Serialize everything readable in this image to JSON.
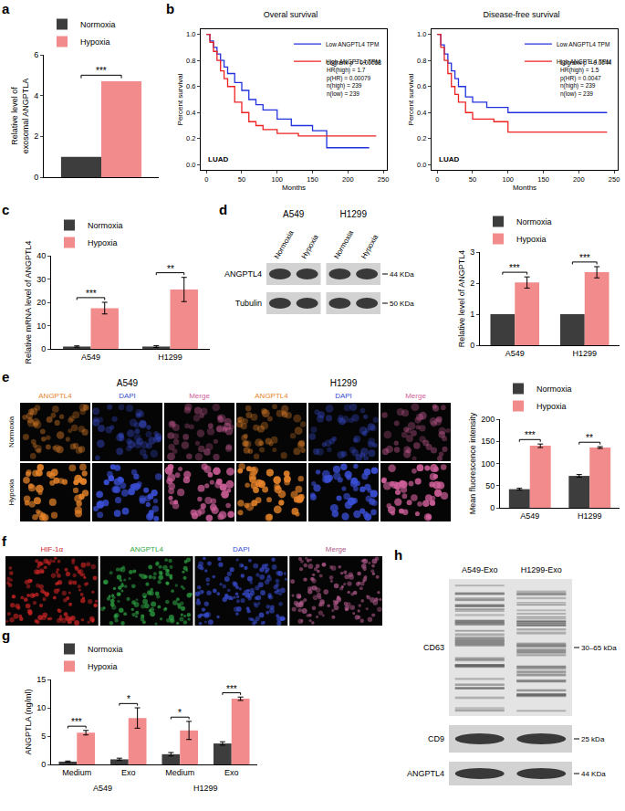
{
  "chart_data": [
    {
      "panel": "a",
      "type": "bar",
      "y_label": [
        "Relative level of",
        "exosomal ANGPTLA"
      ],
      "categories": [
        null
      ],
      "series": [
        {
          "name": "Normoxia",
          "color": "#3d3d3d",
          "values": [
            1
          ]
        },
        {
          "name": "Hypoxia",
          "color": "#f28b8b",
          "values": [
            4.7
          ]
        }
      ],
      "significance": [
        "***"
      ],
      "ylim": [
        0,
        6
      ],
      "yticks": [
        0,
        2,
        4,
        6
      ],
      "legend": "top-left"
    },
    {
      "panel": "b",
      "type": "line",
      "title": "Overal survival",
      "x_label": "Months",
      "y_label": "Percent survival",
      "line_style": "step",
      "series": [
        {
          "name": "Low ANGPTL4 TPM",
          "color": "#2233dd",
          "x": [
            0,
            5,
            10,
            15,
            20,
            25,
            30,
            40,
            50,
            60,
            70,
            80,
            100,
            120,
            150,
            165,
            170,
            230
          ],
          "values": [
            1,
            0.95,
            0.9,
            0.85,
            0.8,
            0.75,
            0.7,
            0.63,
            0.57,
            0.5,
            0.46,
            0.42,
            0.35,
            0.3,
            0.26,
            0.26,
            0.13,
            0.13
          ]
        },
        {
          "name": "High ANGPTL4 TPM",
          "color": "#ee2222",
          "x": [
            0,
            5,
            10,
            15,
            20,
            25,
            30,
            40,
            50,
            60,
            70,
            80,
            100,
            130,
            240
          ],
          "values": [
            1,
            0.94,
            0.87,
            0.8,
            0.72,
            0.66,
            0.6,
            0.48,
            0.4,
            0.33,
            0.3,
            0.27,
            0.24,
            0.22,
            0.22
          ]
        }
      ],
      "annotations": [
        "Logrank p = 0.00068",
        "HR(high) = 1.7",
        "p(HR) = 0.00079",
        "n(high) = 239",
        "n(low) = 239"
      ],
      "corner_label": "LUAD",
      "xlim": [
        -8,
        255
      ],
      "xticks": [
        0,
        50,
        100,
        150,
        200,
        250
      ],
      "ylim": [
        -0.04,
        1.04
      ],
      "yticks": [
        {
          "value": 0,
          "label": "0.0"
        },
        {
          "value": 0.2,
          "label": "0.2"
        },
        {
          "value": 0.4,
          "label": "0.4"
        },
        {
          "value": 0.6,
          "label": "0.6"
        },
        {
          "value": 0.8,
          "label": "0.8"
        },
        {
          "value": 1,
          "label": "1.0"
        }
      ],
      "legend": "top-right"
    },
    {
      "type": "line",
      "title": "Disease-free survival",
      "x_label": "Months",
      "y_label": "Percent survival",
      "line_style": "step",
      "series": [
        {
          "name": "Low ANGPTL4 TPM",
          "color": "#2233dd",
          "x": [
            0,
            5,
            10,
            15,
            20,
            25,
            30,
            40,
            50,
            70,
            100,
            240
          ],
          "values": [
            1,
            0.92,
            0.85,
            0.78,
            0.72,
            0.66,
            0.6,
            0.52,
            0.48,
            0.44,
            0.4,
            0.4
          ]
        },
        {
          "name": "High ANGPTL4 TPM",
          "color": "#ee2222",
          "x": [
            0,
            5,
            10,
            15,
            20,
            25,
            30,
            40,
            50,
            80,
            100,
            240
          ],
          "values": [
            1,
            0.9,
            0.8,
            0.7,
            0.6,
            0.54,
            0.48,
            0.4,
            0.35,
            0.33,
            0.25,
            0.25
          ]
        }
      ],
      "annotations": [
        "Logrank p = 0.0044",
        "HR(high) = 1.5",
        "p(HR) = 0.0047",
        "n(high) = 239",
        "n(low) = 239"
      ],
      "corner_label": "LUAD",
      "xlim": [
        -8,
        255
      ],
      "xticks": [
        0,
        50,
        100,
        150,
        200,
        250
      ],
      "ylim": [
        -0.04,
        1.04
      ],
      "yticks": [
        {
          "value": 0,
          "label": "0.0"
        },
        {
          "value": 0.2,
          "label": "0.2"
        },
        {
          "value": 0.4,
          "label": "0.4"
        },
        {
          "value": 0.6,
          "label": "0.6"
        },
        {
          "value": 0.8,
          "label": "0.8"
        },
        {
          "value": 1,
          "label": "1.0"
        }
      ],
      "legend": "top-right"
    },
    {
      "panel": "c",
      "type": "bar",
      "y_label": "Relative mRNA level of ANGPTL4",
      "categories": [
        "A549",
        "H1299"
      ],
      "series": [
        {
          "name": "Normoxia",
          "color": "#3d3d3d",
          "values": [
            1,
            1
          ],
          "error": [
            0.3,
            0.4
          ]
        },
        {
          "name": "Hypoxia",
          "color": "#f28b8b",
          "values": [
            17.5,
            25.5
          ],
          "error": [
            2.5,
            5.2
          ]
        }
      ],
      "significance": [
        "***",
        "**"
      ],
      "ylim": [
        0,
        40
      ],
      "yticks": [
        0,
        10,
        20,
        30,
        40
      ],
      "legend": "top-left"
    },
    {
      "type": "bar",
      "y_label": "Relative level of ANGPTL4",
      "categories": [
        "A549",
        "H1299"
      ],
      "series": [
        {
          "name": "Normoxia",
          "color": "#3d3d3d",
          "values": [
            1,
            1
          ]
        },
        {
          "name": "Hypoxia",
          "color": "#f28b8b",
          "values": [
            2.02,
            2.35
          ],
          "error": [
            0.18,
            0.18
          ]
        }
      ],
      "significance": [
        "***",
        "***"
      ],
      "ylim": [
        0,
        3
      ],
      "yticks": [
        0,
        1,
        2,
        3
      ],
      "legend": "top-left"
    },
    {
      "type": "bar",
      "y_label": "Mean fluorescence intensity",
      "categories": [
        "A549",
        "H1299"
      ],
      "series": [
        {
          "name": "Normoxia",
          "color": "#3d3d3d",
          "values": [
            42,
            72
          ],
          "error": [
            2,
            3
          ]
        },
        {
          "name": "Hypoxia",
          "color": "#f28b8b",
          "values": [
            140,
            136
          ],
          "error": [
            4,
            2
          ]
        }
      ],
      "significance": [
        "***",
        "**"
      ],
      "ylim": [
        0,
        200
      ],
      "yticks": [
        0,
        50,
        100,
        150,
        200
      ],
      "legend": "top-left"
    },
    {
      "panel": "g",
      "type": "bar",
      "y_label": "ANGPTLA (ng/ml)",
      "categories": [
        "Medium",
        "Exo",
        "Medium",
        "Exo"
      ],
      "group_labels": [
        "A549",
        "H1299"
      ],
      "series": [
        {
          "name": "Normoxia",
          "color": "#3d3d3d",
          "values": [
            0.5,
            0.9,
            1.8,
            3.7
          ],
          "error": [
            0.1,
            0.2,
            0.3,
            0.3
          ]
        },
        {
          "name": "Hypoxia",
          "color": "#f28b8b",
          "values": [
            5.6,
            8.2,
            6.0,
            11.6
          ],
          "error": [
            0.4,
            1.8,
            1.6,
            0.3
          ]
        }
      ],
      "significance": [
        "***",
        "*",
        "*",
        "***"
      ],
      "ylim": [
        0,
        15
      ],
      "yticks": [
        0,
        5,
        10,
        15
      ],
      "legend": "top-left"
    }
  ],
  "images": [
    {
      "panel": "d",
      "type": "blot",
      "column_groups": [
        "A549",
        "H1299"
      ],
      "columns": [
        "Normoxia",
        "Hypoxia",
        "Normoxia",
        "Hypoxia"
      ],
      "rows": [
        {
          "name": "ANGPTL4",
          "size": "44 KDa"
        },
        {
          "name": "Tubulin",
          "size": "50 KDa"
        }
      ]
    },
    {
      "panel": "e",
      "type": "micrograph",
      "column_groups": [
        "A549",
        "H1299"
      ],
      "columns": [
        {
          "label": "ANGPTL4",
          "color": "#e8842a"
        },
        {
          "label": "DAPI",
          "color": "#3a4fd6"
        },
        {
          "label": "Merge",
          "color": "#d0609a"
        },
        {
          "label": "ANGPTL4",
          "color": "#e8842a"
        },
        {
          "label": "DAPI",
          "color": "#3a4fd6"
        },
        {
          "label": "Merge",
          "color": "#d0609a"
        }
      ],
      "rows": [
        "Normoxia",
        "Hypoxia"
      ]
    },
    {
      "panel": "f",
      "type": "micrograph",
      "columns": [
        {
          "label": "HIF-1α",
          "color": "#d02525"
        },
        {
          "label": "ANGPTL4",
          "color": "#2fa845"
        },
        {
          "label": "DAPI",
          "color": "#3a4fd6"
        },
        {
          "label": "Merge",
          "color": "#b05a8a"
        }
      ]
    },
    {
      "panel": "h",
      "type": "blot",
      "columns": [
        "A549-Exo",
        "H1299-Exo"
      ],
      "rows": [
        {
          "name": "CD63",
          "size": "30–65 kDa"
        },
        {
          "name": "CD9",
          "size": "25 kDa"
        },
        {
          "name": "ANGPTL4",
          "size": "44 KDa"
        }
      ]
    }
  ]
}
